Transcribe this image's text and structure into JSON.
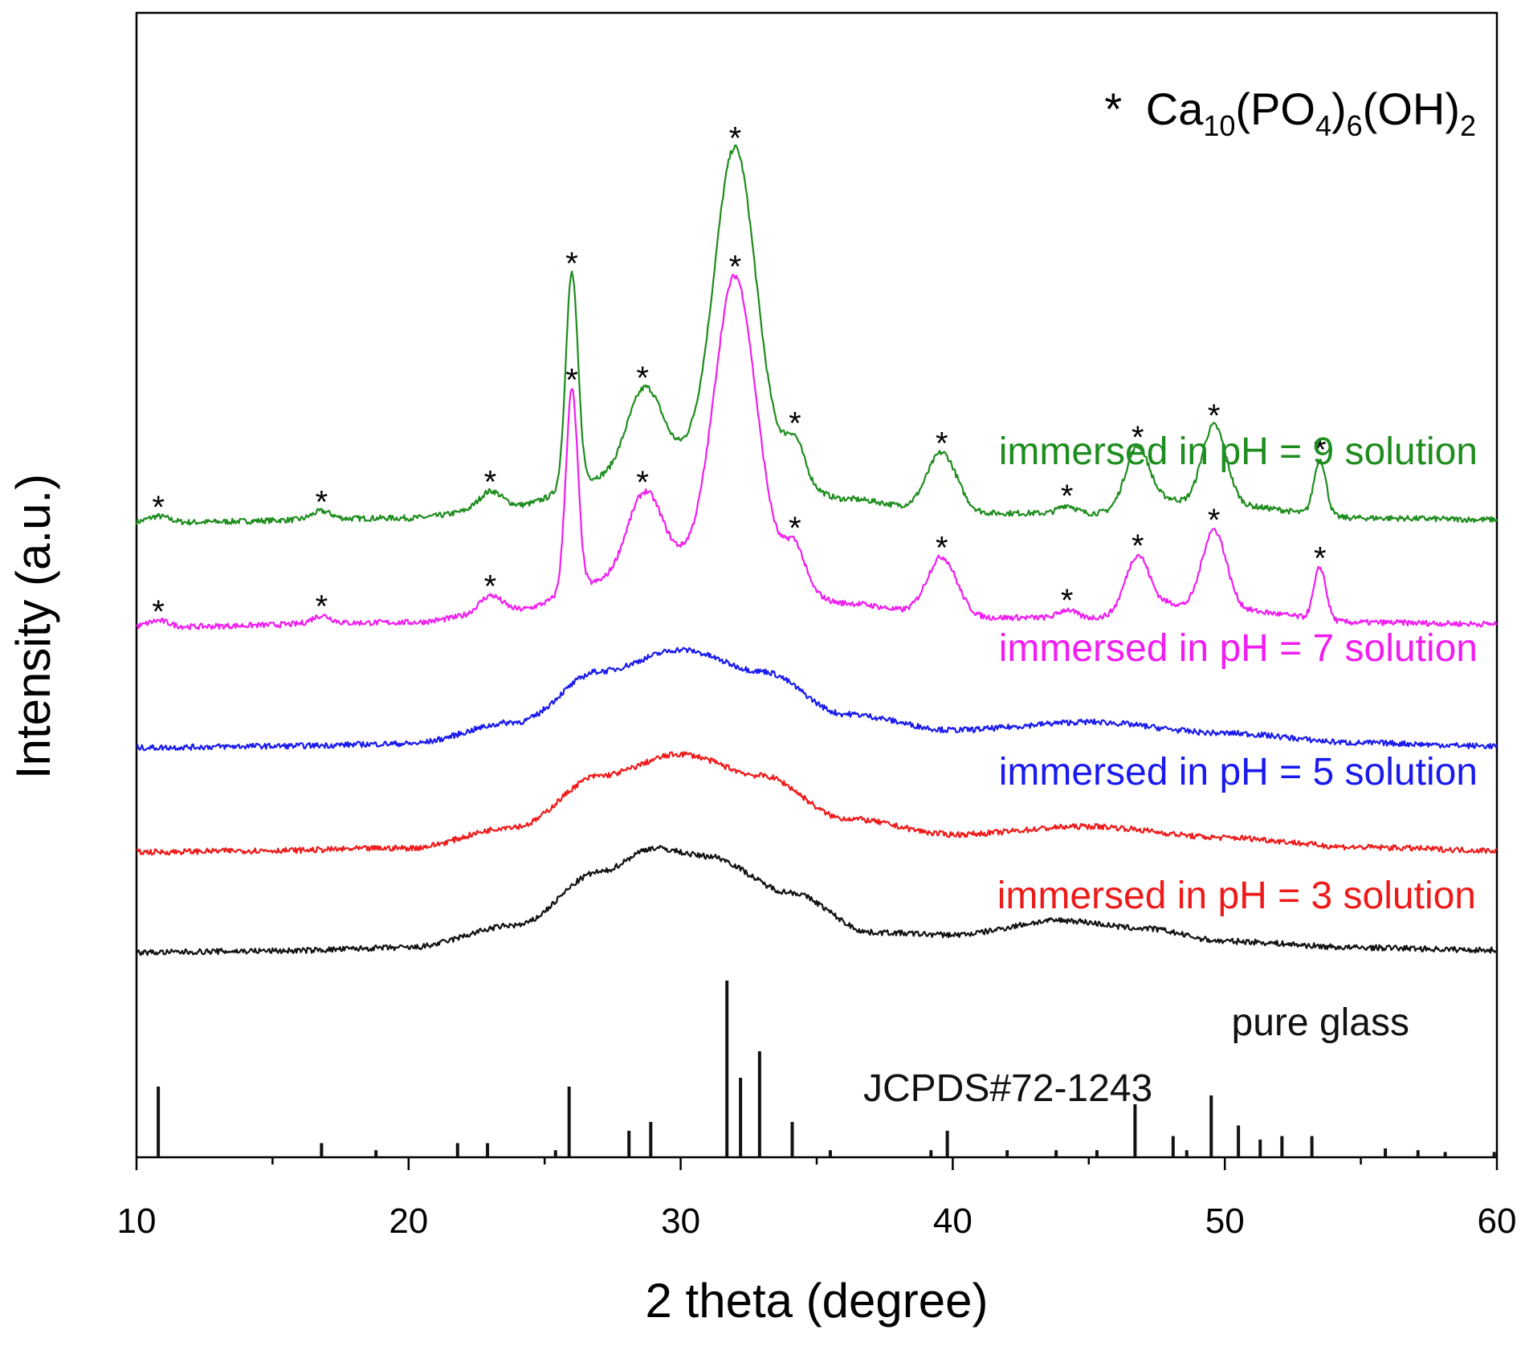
{
  "chart_data": {
    "type": "line",
    "xlabel": "2 theta (degree)",
    "ylabel": "Intensity (a.u.)",
    "xlim": [
      10,
      60
    ],
    "x_ticks": [
      "10",
      "20",
      "30",
      "40",
      "50",
      "60"
    ],
    "legend_title": {
      "marker": "*",
      "prefix": "Ca",
      "sub1": "10",
      "mid1": "(PO",
      "sub2": "4",
      "mid2": ")",
      "sub3": "6",
      "mid3": "(OH)",
      "sub4": "2"
    },
    "series": [
      {
        "name": "immersed in pH = 9 solution",
        "color": "#1e8c1e",
        "baseline": 790,
        "background": [
          [
            10,
            0
          ],
          [
            20,
            6
          ],
          [
            24,
            22
          ],
          [
            27,
            55
          ],
          [
            30,
            85
          ],
          [
            33,
            75
          ],
          [
            36,
            30
          ],
          [
            40,
            12
          ],
          [
            45,
            12
          ],
          [
            50,
            22
          ],
          [
            55,
            6
          ],
          [
            60,
            4
          ]
        ],
        "peaks": [
          [
            10.8,
            8,
            0.4
          ],
          [
            16.8,
            10,
            0.35
          ],
          [
            23,
            20,
            0.4
          ],
          [
            26,
            265,
            0.22
          ],
          [
            28.5,
            75,
            0.6
          ],
          [
            29,
            30,
            0.5
          ],
          [
            32,
            390,
            0.75
          ],
          [
            34.2,
            45,
            0.35
          ],
          [
            39.6,
            75,
            0.55
          ],
          [
            44.2,
            10,
            0.3
          ],
          [
            46.8,
            80,
            0.45
          ],
          [
            48,
            10,
            0.4
          ],
          [
            49.6,
            100,
            0.45
          ],
          [
            53.5,
            70,
            0.22
          ]
        ],
        "peak_markers": [
          10.8,
          16.8,
          23,
          26,
          28.6,
          32,
          34.2,
          39.6,
          44.2,
          46.8,
          49.6,
          53.5
        ]
      },
      {
        "name": "immersed in pH = 7 solution",
        "color": "#f01ef0",
        "baseline": 660,
        "background": [
          [
            10,
            0
          ],
          [
            20,
            6
          ],
          [
            24,
            22
          ],
          [
            27,
            55
          ],
          [
            30,
            85
          ],
          [
            33,
            75
          ],
          [
            36,
            30
          ],
          [
            40,
            12
          ],
          [
            45,
            12
          ],
          [
            50,
            22
          ],
          [
            55,
            6
          ],
          [
            60,
            4
          ]
        ],
        "peaks": [
          [
            10.8,
            8,
            0.4
          ],
          [
            16.8,
            10,
            0.35
          ],
          [
            23,
            20,
            0.4
          ],
          [
            26,
            250,
            0.22
          ],
          [
            28.5,
            75,
            0.6
          ],
          [
            29,
            30,
            0.5
          ],
          [
            32,
            360,
            0.75
          ],
          [
            34.2,
            45,
            0.35
          ],
          [
            39.6,
            75,
            0.55
          ],
          [
            44.2,
            10,
            0.3
          ],
          [
            46.8,
            75,
            0.45
          ],
          [
            48,
            10,
            0.4
          ],
          [
            49.6,
            100,
            0.45
          ],
          [
            53.5,
            65,
            0.22
          ]
        ],
        "peak_markers": [
          10.8,
          16.8,
          23,
          26,
          28.6,
          32,
          34.2,
          39.6,
          44.2,
          46.8,
          49.6,
          53.5
        ]
      },
      {
        "name": "immersed in pH = 5 solution",
        "color": "#1a1aee",
        "baseline": 510,
        "background": [
          [
            10,
            0
          ],
          [
            15,
            2
          ],
          [
            20,
            5
          ],
          [
            24,
            32
          ],
          [
            27,
            95
          ],
          [
            30,
            122
          ],
          [
            33,
            95
          ],
          [
            36,
            42
          ],
          [
            40,
            22
          ],
          [
            45,
            32
          ],
          [
            50,
            18
          ],
          [
            55,
            6
          ],
          [
            60,
            2
          ]
        ],
        "peaks": [],
        "peak_markers": []
      },
      {
        "name": "immersed in pH = 3 solution",
        "color": "#ee1a1a",
        "baseline": 380,
        "background": [
          [
            10,
            0
          ],
          [
            15,
            2
          ],
          [
            20,
            5
          ],
          [
            24,
            32
          ],
          [
            27,
            95
          ],
          [
            30,
            122
          ],
          [
            33,
            95
          ],
          [
            36,
            42
          ],
          [
            40,
            22
          ],
          [
            45,
            32
          ],
          [
            50,
            18
          ],
          [
            55,
            6
          ],
          [
            60,
            2
          ]
        ],
        "peaks": [],
        "peak_markers": []
      },
      {
        "name": "pure glass",
        "color": "#111111",
        "baseline": 255,
        "background": [
          [
            10,
            0
          ],
          [
            15,
            2
          ],
          [
            20,
            6
          ],
          [
            24,
            34
          ],
          [
            27,
            100
          ],
          [
            29,
            130
          ],
          [
            31,
            120
          ],
          [
            34,
            75
          ],
          [
            37,
            25
          ],
          [
            40,
            22
          ],
          [
            44,
            40
          ],
          [
            47,
            30
          ],
          [
            50,
            14
          ],
          [
            55,
            6
          ],
          [
            60,
            3
          ]
        ],
        "peaks": [],
        "peak_markers": []
      }
    ],
    "reference": {
      "name": "JCPDS#72-1243",
      "color": "#111111",
      "positions": [
        10.8,
        16.8,
        18.8,
        21.8,
        22.9,
        25.4,
        25.9,
        28.1,
        28.9,
        31.7,
        32.2,
        32.9,
        34.1,
        35.5,
        39.2,
        39.8,
        42,
        43.8,
        45.3,
        46.7,
        48.1,
        48.6,
        49.5,
        50.5,
        51.3,
        52.1,
        53.2,
        55.9,
        57.1,
        58.1,
        59.9
      ],
      "intensities": [
        40,
        8,
        4,
        8,
        8,
        4,
        40,
        15,
        20,
        100,
        45,
        60,
        20,
        4,
        4,
        15,
        4,
        4,
        4,
        30,
        12,
        4,
        35,
        18,
        10,
        12,
        12,
        5,
        4,
        3,
        3
      ]
    }
  }
}
